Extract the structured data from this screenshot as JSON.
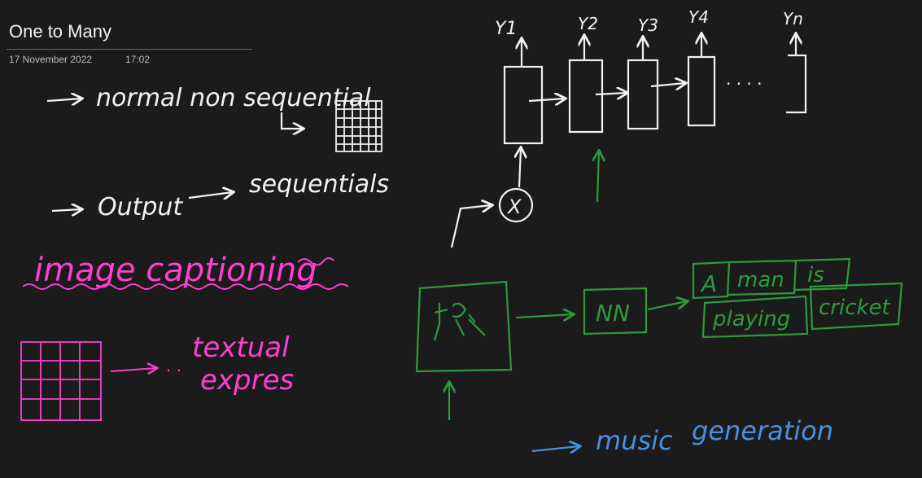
{
  "page": {
    "title": "One to Many",
    "date": "17 November 2022",
    "time": "17:02"
  },
  "colors": {
    "background": "#1b1b1b",
    "white_ink": "#f2f2f2",
    "pink_ink": "#ff3fd3",
    "green_ink": "#2e9a3e",
    "blue_ink": "#4a8fe0"
  },
  "notes": {
    "line1": "normal non sequential",
    "line2_output": "Output",
    "line2_sequential": "sequentials",
    "image_captioning": "image captioning",
    "textual_1": "textual",
    "textual_2": "expres",
    "music_1": "music",
    "music_2": "generation"
  },
  "rnn_diagram": {
    "outputs": [
      "Y1",
      "Y2",
      "Y3",
      "Y4",
      "Yn"
    ],
    "input_node": "X",
    "dots": ". . . ."
  },
  "caption_diagram": {
    "nn_label": "NN",
    "caption_words": [
      "A",
      "man",
      "is",
      "playing",
      "cricket"
    ]
  }
}
